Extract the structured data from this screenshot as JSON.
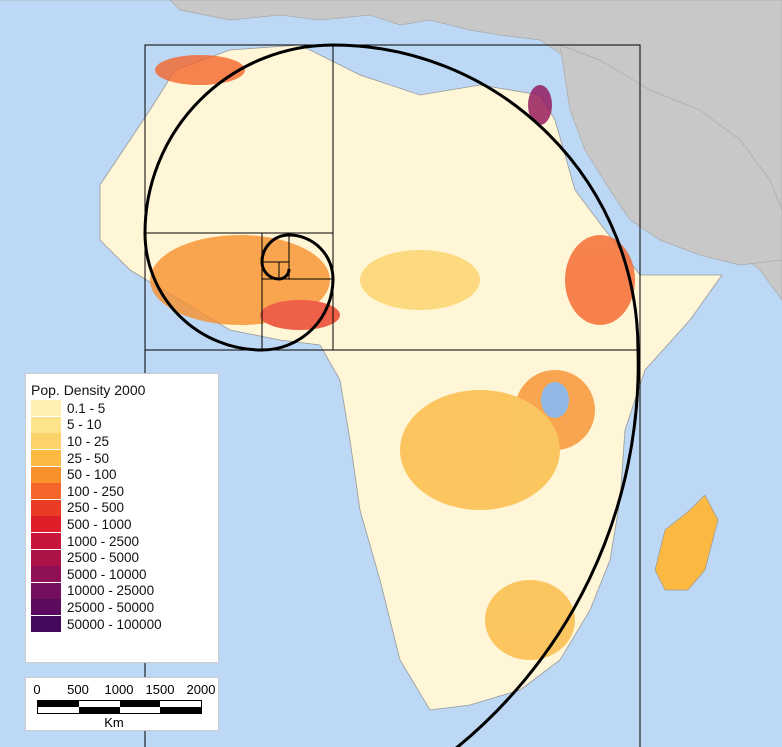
{
  "legend": {
    "title": "Pop. Density 2000",
    "classes": [
      {
        "label": "0.1 - 5",
        "color": "#fdf0b0"
      },
      {
        "label": "5 - 10",
        "color": "#fde38a"
      },
      {
        "label": "10 - 25",
        "color": "#fcd26a"
      },
      {
        "label": "25 - 50",
        "color": "#fbb942"
      },
      {
        "label": "50 - 100",
        "color": "#f8902c"
      },
      {
        "label": "100 - 250",
        "color": "#f4652a"
      },
      {
        "label": "250 - 500",
        "color": "#ea3b24"
      },
      {
        "label": "500 - 1000",
        "color": "#de1f2a"
      },
      {
        "label": "1000 - 2500",
        "color": "#c8153b"
      },
      {
        "label": "2500 - 5000",
        "color": "#ac1248"
      },
      {
        "label": "5000 - 10000",
        "color": "#901056"
      },
      {
        "label": "10000 - 25000",
        "color": "#740e5e"
      },
      {
        "label": "25000 - 50000",
        "color": "#5a0b5e"
      },
      {
        "label": "50000 - 100000",
        "color": "#45085a"
      }
    ]
  },
  "scale_bar": {
    "ticks": [
      "0",
      "500",
      "1000",
      "1500",
      "2000"
    ],
    "unit": "Km"
  },
  "colors": {
    "ocean": "#bcd8f5",
    "other_land": "#c8c8c8",
    "spiral": "#000000"
  }
}
